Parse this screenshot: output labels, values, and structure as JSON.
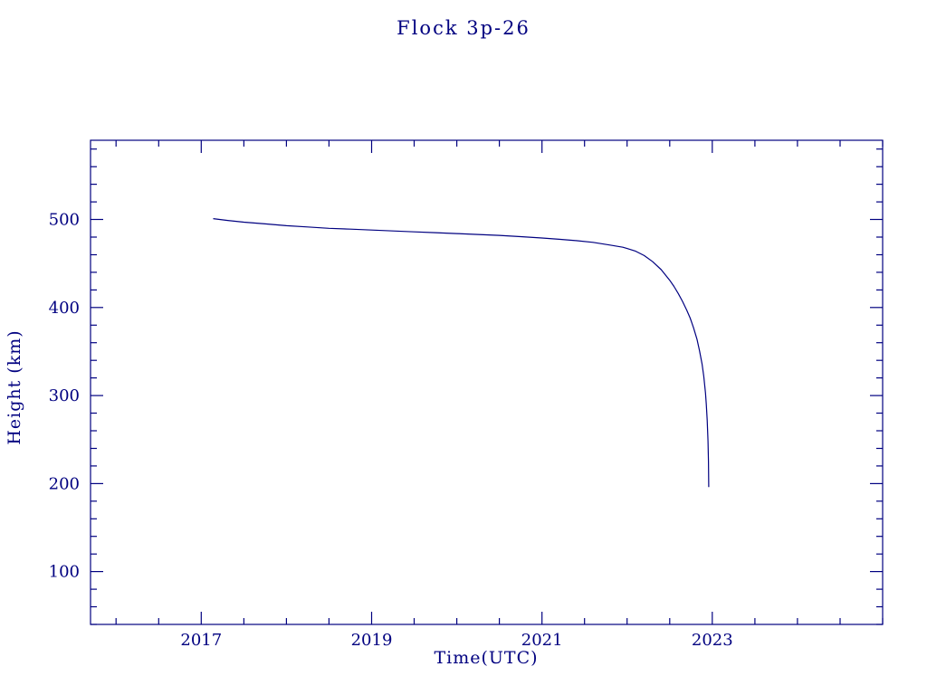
{
  "colors": {
    "axis": "#000080",
    "line": "#000080",
    "text": "#000080",
    "background": "#ffffff"
  },
  "chart_data": {
    "type": "line",
    "title": "Flock 3p-26",
    "xlabel": "Time(UTC)",
    "ylabel": "Height (km)",
    "xlim": [
      2015.7,
      2025.0
    ],
    "ylim": [
      40,
      590
    ],
    "x_major_ticks": [
      2017,
      2019,
      2021,
      2023
    ],
    "x_minor_step": 0.5,
    "y_major_ticks": [
      100,
      200,
      300,
      400,
      500
    ],
    "y_minor_step": 20,
    "grid": false,
    "legend": "none",
    "series": [
      {
        "name": "Flock 3p-26 height",
        "points": [
          [
            2017.14,
            501
          ],
          [
            2017.3,
            499
          ],
          [
            2017.5,
            497
          ],
          [
            2017.75,
            495
          ],
          [
            2018.0,
            493
          ],
          [
            2018.25,
            491.5
          ],
          [
            2018.5,
            490
          ],
          [
            2018.75,
            489
          ],
          [
            2019.0,
            488
          ],
          [
            2019.25,
            487
          ],
          [
            2019.5,
            486
          ],
          [
            2019.75,
            485
          ],
          [
            2020.0,
            484
          ],
          [
            2020.25,
            483
          ],
          [
            2020.5,
            482
          ],
          [
            2020.75,
            480.5
          ],
          [
            2021.0,
            479
          ],
          [
            2021.2,
            477.5
          ],
          [
            2021.4,
            476
          ],
          [
            2021.6,
            474
          ],
          [
            2021.8,
            471
          ],
          [
            2021.95,
            468.5
          ],
          [
            2022.0,
            467
          ],
          [
            2022.1,
            464
          ],
          [
            2022.2,
            459
          ],
          [
            2022.3,
            452
          ],
          [
            2022.4,
            443
          ],
          [
            2022.5,
            431
          ],
          [
            2022.55,
            424
          ],
          [
            2022.6,
            416
          ],
          [
            2022.65,
            407
          ],
          [
            2022.7,
            397
          ],
          [
            2022.74,
            388
          ],
          [
            2022.78,
            377
          ],
          [
            2022.82,
            364
          ],
          [
            2022.85,
            351
          ],
          [
            2022.88,
            336
          ],
          [
            2022.9,
            322
          ],
          [
            2022.92,
            303
          ],
          [
            2022.93,
            290
          ],
          [
            2022.94,
            272
          ],
          [
            2022.95,
            248
          ],
          [
            2022.955,
            225
          ],
          [
            2022.958,
            196
          ]
        ]
      }
    ]
  }
}
